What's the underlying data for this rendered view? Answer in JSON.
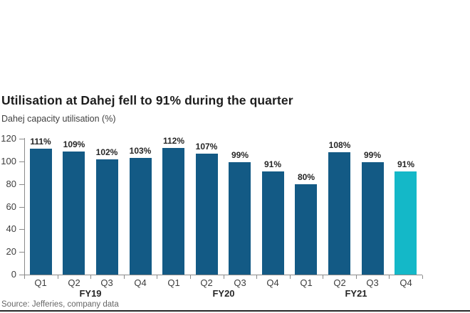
{
  "header": {
    "title": "Utilisation at Dahej fell to 91% during the quarter",
    "subtitle": "Dahej capacity utilisation (%)"
  },
  "footer": {
    "source": "Source: Jefferies, company data"
  },
  "colors": {
    "bar": "#135a85",
    "bar_highlight": "#14b8c8",
    "axis": "#8a8a8a",
    "value_label": "#262626",
    "tick_label": "#3d3d3d",
    "bottom_rule": "#262626"
  },
  "chart_data": {
    "type": "bar",
    "title": "Utilisation at Dahej fell to 91% during the quarter",
    "subtitle": "Dahej capacity utilisation (%)",
    "categories": [
      "Q1",
      "Q2",
      "Q3",
      "Q4",
      "Q1",
      "Q2",
      "Q3",
      "Q4",
      "Q1",
      "Q2",
      "Q3",
      "Q4"
    ],
    "groups": [
      {
        "label": "FY19",
        "span": 4
      },
      {
        "label": "FY20",
        "span": 4
      },
      {
        "label": "FY21",
        "span": 4
      }
    ],
    "values": [
      111,
      109,
      102,
      103,
      112,
      107,
      99,
      91,
      80,
      108,
      99,
      91
    ],
    "value_labels": [
      "111%",
      "109%",
      "102%",
      "103%",
      "112%",
      "107%",
      "99%",
      "91%",
      "80%",
      "108%",
      "99%",
      "91%"
    ],
    "highlight_index": 11,
    "ylim": [
      0,
      120
    ],
    "yticks": [
      0,
      20,
      40,
      60,
      80,
      100,
      120
    ],
    "grid": false,
    "legend": "none",
    "source": "Source: Jefferies, company data"
  }
}
